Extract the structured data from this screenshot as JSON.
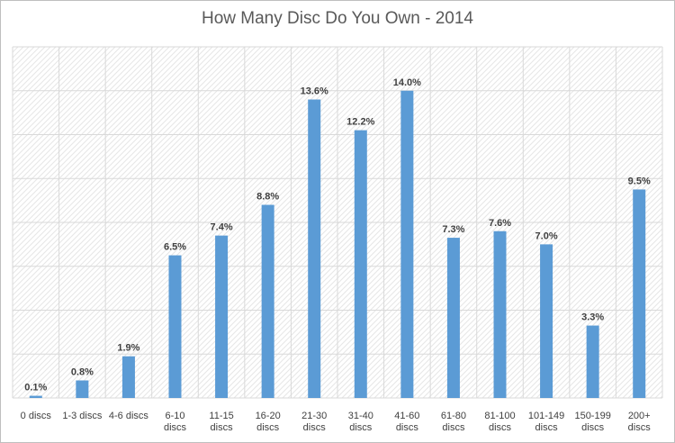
{
  "chart_data": {
    "type": "bar",
    "title": "How Many Disc Do You Own - 2014",
    "categories": [
      [
        "0 discs"
      ],
      [
        "1-3 discs"
      ],
      [
        "4-6 discs"
      ],
      [
        "6-10",
        "discs"
      ],
      [
        "11-15",
        "discs"
      ],
      [
        "16-20",
        "discs"
      ],
      [
        "21-30",
        "discs"
      ],
      [
        "31-40",
        "discs"
      ],
      [
        "41-60",
        "discs"
      ],
      [
        "61-80",
        "discs"
      ],
      [
        "81-100",
        "discs"
      ],
      [
        "101-149",
        "discs"
      ],
      [
        "150-199",
        "discs"
      ],
      [
        "200+",
        "discs"
      ]
    ],
    "values": [
      0.1,
      0.8,
      1.9,
      6.5,
      7.4,
      8.8,
      13.6,
      12.2,
      14.0,
      7.3,
      7.6,
      7.0,
      3.3,
      9.5
    ],
    "value_labels": [
      "0.1%",
      "0.8%",
      "1.9%",
      "6.5%",
      "7.4%",
      "8.8%",
      "13.6%",
      "12.2%",
      "14.0%",
      "7.3%",
      "7.6%",
      "7.0%",
      "3.3%",
      "9.5%"
    ],
    "ylim": [
      0,
      16
    ],
    "grid": true,
    "colors": {
      "bar": "#5b9bd5",
      "grid": "#d9d9d9",
      "hatch": "#e6e6e6",
      "text": "#404040"
    }
  }
}
